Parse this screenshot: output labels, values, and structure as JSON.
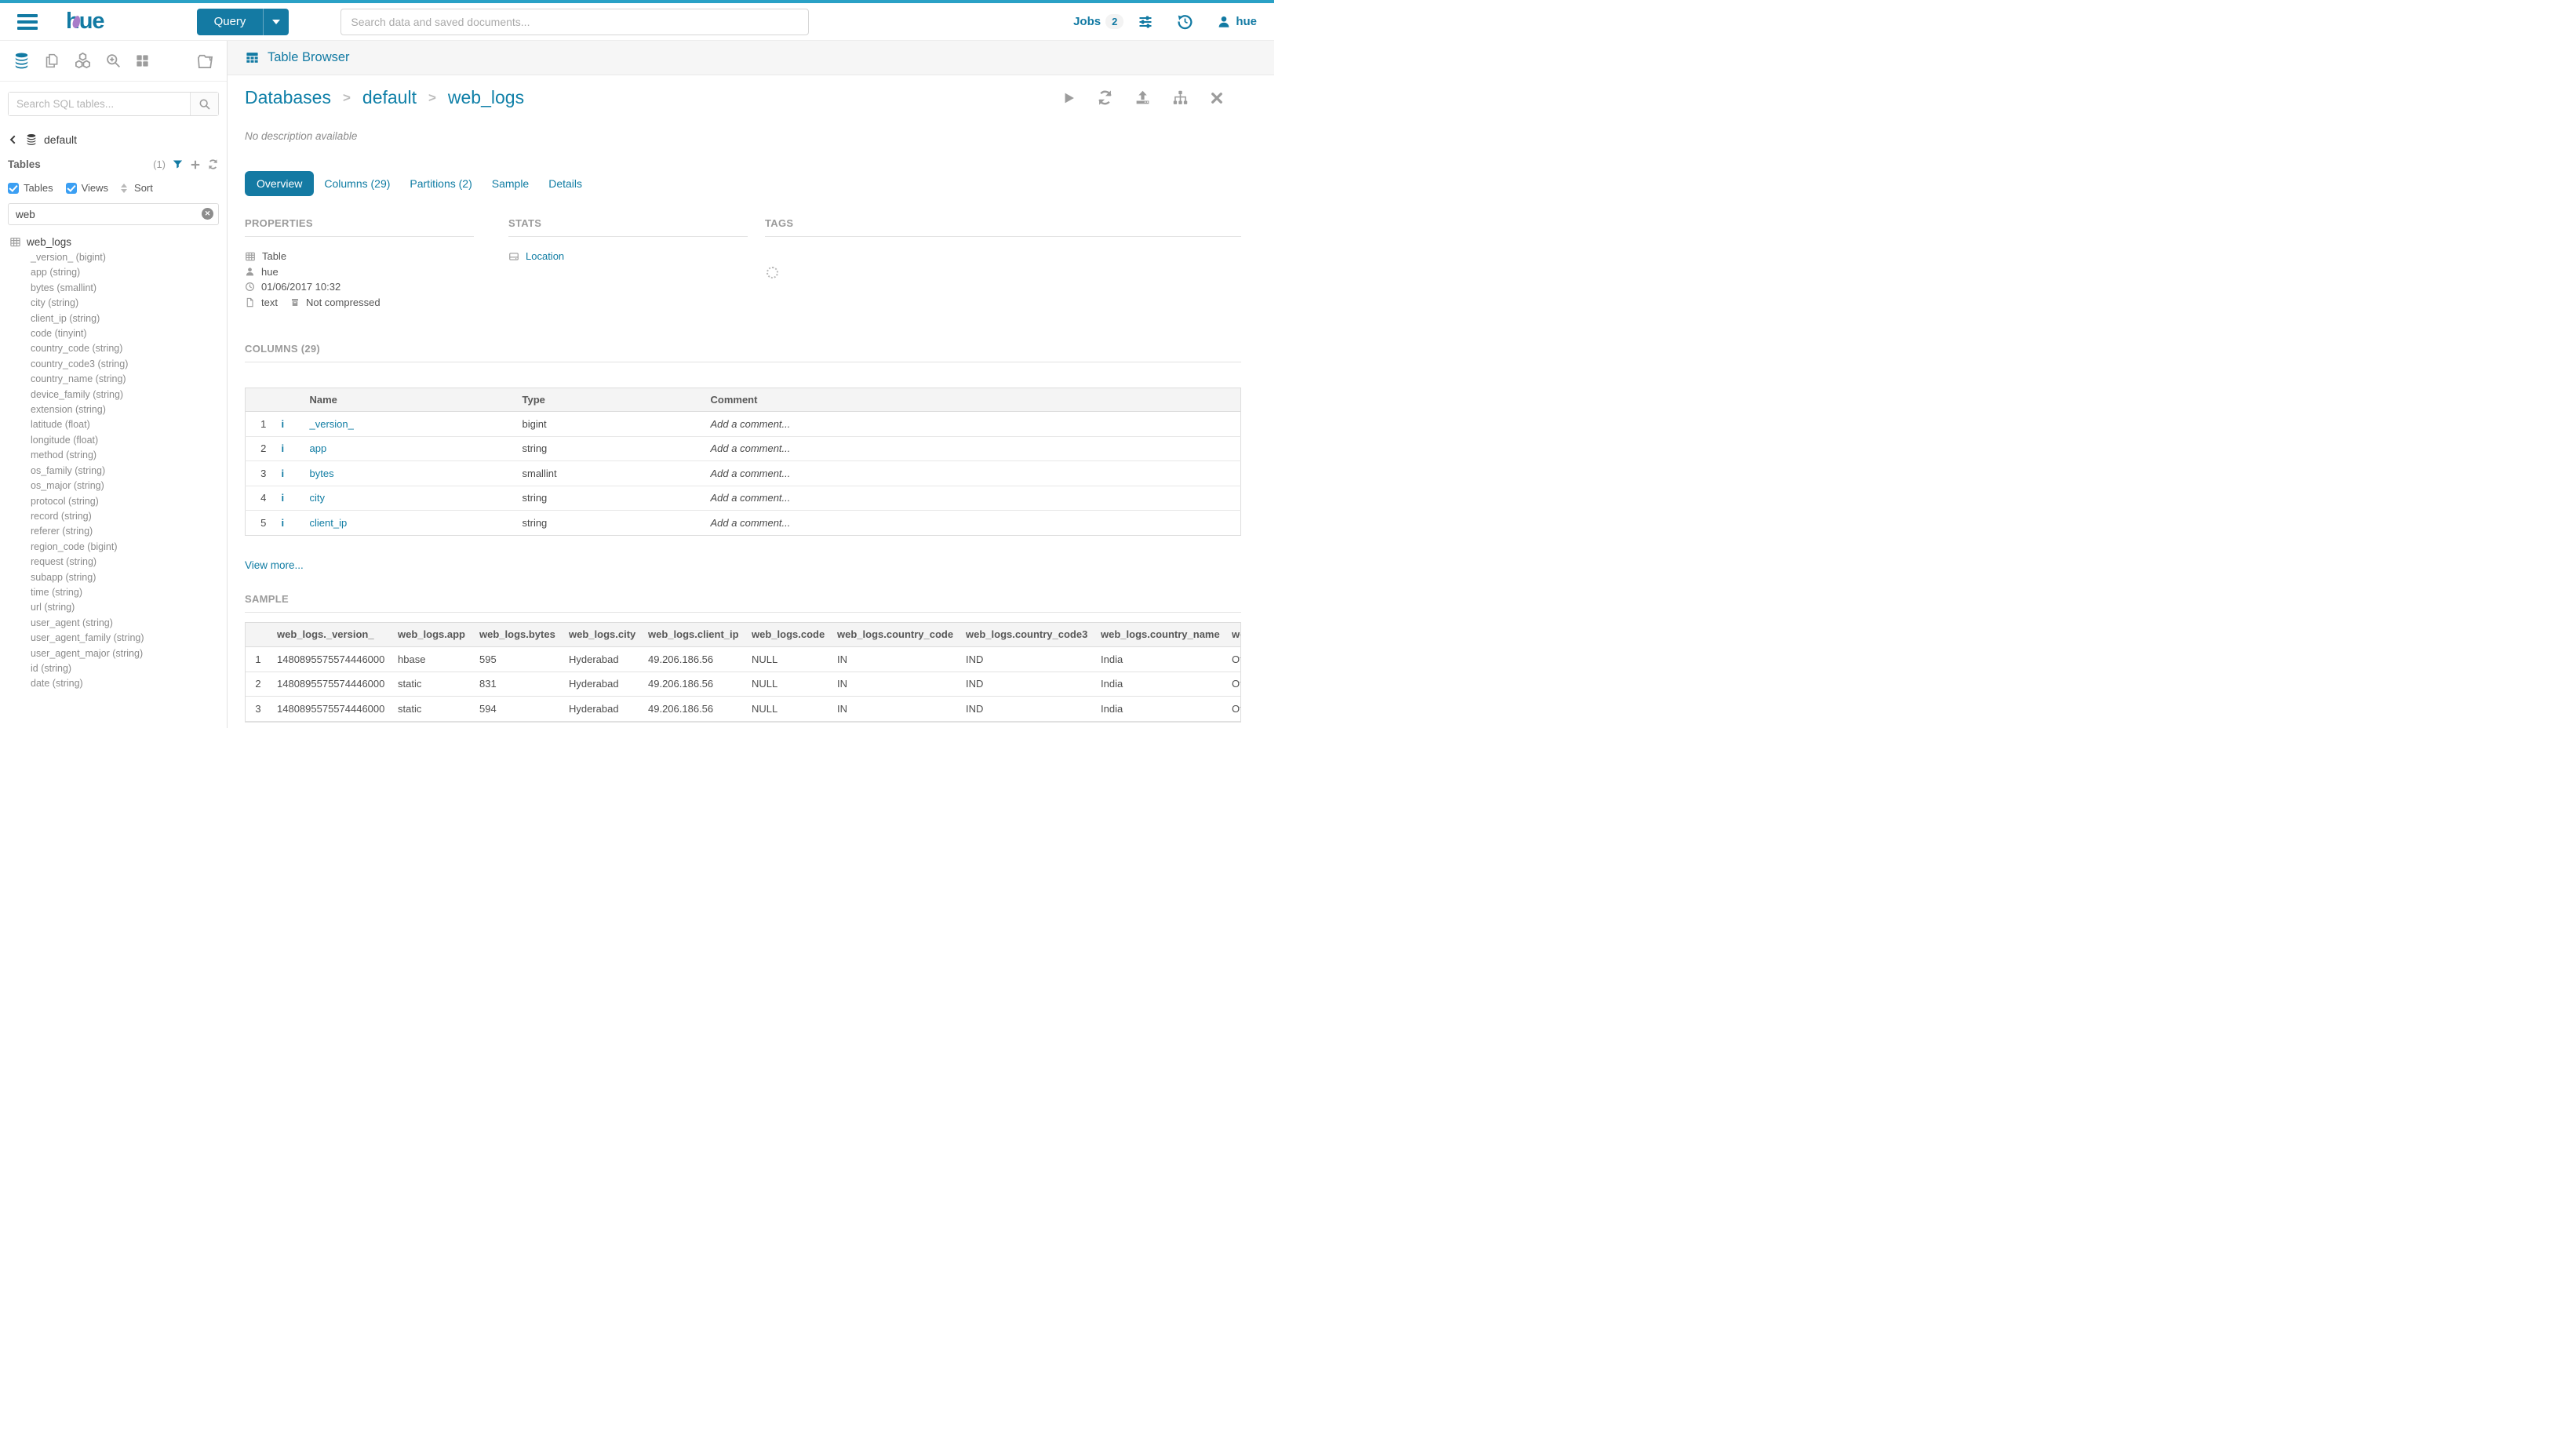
{
  "topbar": {
    "logo_text": "hue",
    "query_button_label": "Query",
    "search_placeholder": "Search data and saved documents...",
    "jobs_label": "Jobs",
    "jobs_count": "2",
    "user_name": "hue"
  },
  "sidebar": {
    "search_placeholder": "Search SQL tables...",
    "database_name": "default",
    "tables_header": "Tables",
    "tables_count": "(1)",
    "filter_tables_label": "Tables",
    "filter_views_label": "Views",
    "sort_label": "Sort",
    "filter_value": "web",
    "table_name": "web_logs",
    "columns": [
      "_version_ (bigint)",
      "app (string)",
      "bytes (smallint)",
      "city (string)",
      "client_ip (string)",
      "code (tinyint)",
      "country_code (string)",
      "country_code3 (string)",
      "country_name (string)",
      "device_family (string)",
      "extension (string)",
      "latitude (float)",
      "longitude (float)",
      "method (string)",
      "os_family (string)",
      "os_major (string)",
      "protocol (string)",
      "record (string)",
      "referer (string)",
      "region_code (bigint)",
      "request (string)",
      "subapp (string)",
      "time (string)",
      "url (string)",
      "user_agent (string)",
      "user_agent_family (string)",
      "user_agent_major (string)",
      "id (string)",
      "date (string)"
    ]
  },
  "main": {
    "app_title": "Table Browser",
    "breadcrumb": [
      "Databases",
      "default",
      "web_logs"
    ],
    "description": "No description available",
    "tabs": [
      {
        "label": "Overview",
        "active": true
      },
      {
        "label": "Columns (29)",
        "active": false
      },
      {
        "label": "Partitions (2)",
        "active": false
      },
      {
        "label": "Sample",
        "active": false
      },
      {
        "label": "Details",
        "active": false
      }
    ],
    "section_titles": {
      "properties": "PROPERTIES",
      "stats": "STATS",
      "tags": "TAGS"
    },
    "properties": {
      "object_type": "Table",
      "owner": "hue",
      "created": "01/06/2017 10:32",
      "format": "text",
      "compression": "Not compressed"
    },
    "stats": {
      "location_label": "Location"
    },
    "columns_heading": "COLUMNS (29)",
    "columns_table": {
      "headers": [
        "Name",
        "Type",
        "Comment"
      ],
      "comment_placeholder": "Add a comment...",
      "rows": [
        {
          "num": "1",
          "name": "_version_",
          "type": "bigint"
        },
        {
          "num": "2",
          "name": "app",
          "type": "string"
        },
        {
          "num": "3",
          "name": "bytes",
          "type": "smallint"
        },
        {
          "num": "4",
          "name": "city",
          "type": "string"
        },
        {
          "num": "5",
          "name": "client_ip",
          "type": "string"
        }
      ]
    },
    "view_more_label": "View more...",
    "sample_heading": "SAMPLE",
    "sample_table": {
      "headers": [
        "web_logs._version_",
        "web_logs.app",
        "web_logs.bytes",
        "web_logs.city",
        "web_logs.client_ip",
        "web_logs.code",
        "web_logs.country_code",
        "web_logs.country_code3",
        "web_logs.country_name",
        "web_logs.device_family"
      ],
      "rows": [
        [
          "1",
          "1480895575574446000",
          "hbase",
          "595",
          "Hyderabad",
          "49.206.186.56",
          "NULL",
          "IN",
          "IND",
          "India",
          "Other"
        ],
        [
          "2",
          "1480895575574446000",
          "static",
          "831",
          "Hyderabad",
          "49.206.186.56",
          "NULL",
          "IN",
          "IND",
          "India",
          "Other"
        ],
        [
          "3",
          "1480895575574446000",
          "static",
          "594",
          "Hyderabad",
          "49.206.186.56",
          "NULL",
          "IN",
          "IND",
          "India",
          "Other"
        ]
      ]
    }
  },
  "icons": {
    "topbar": [
      "hamburger-icon",
      "caret-down-icon",
      "sliders-icon",
      "history-icon",
      "user-icon"
    ],
    "sidebar": [
      "database-icon",
      "documents-icon",
      "cubes-icon",
      "zoom-plus-icon",
      "grid-icon",
      "folder-doc-icon",
      "search-icon",
      "chevron-left-icon",
      "funnel-icon",
      "plus-icon",
      "refresh-icon",
      "sort-icon",
      "clear-icon",
      "table-icon"
    ],
    "main": [
      "table-icon",
      "play-icon",
      "refresh-icon",
      "upload-icon",
      "sitemap-icon",
      "close-icon",
      "user-icon",
      "clock-icon",
      "file-icon",
      "archive-icon",
      "hdd-icon",
      "info-icon",
      "spinner"
    ]
  },
  "colors": {
    "brand_blue": "#127aa3",
    "top_strip": "#2aa1c6",
    "link_blue": "#0f7ca3",
    "checkbox_blue": "#3b9ff3",
    "heading_gray": "#9b9b9b",
    "icon_gray": "#9c9c9c",
    "band_gray": "#f6f6f6"
  }
}
